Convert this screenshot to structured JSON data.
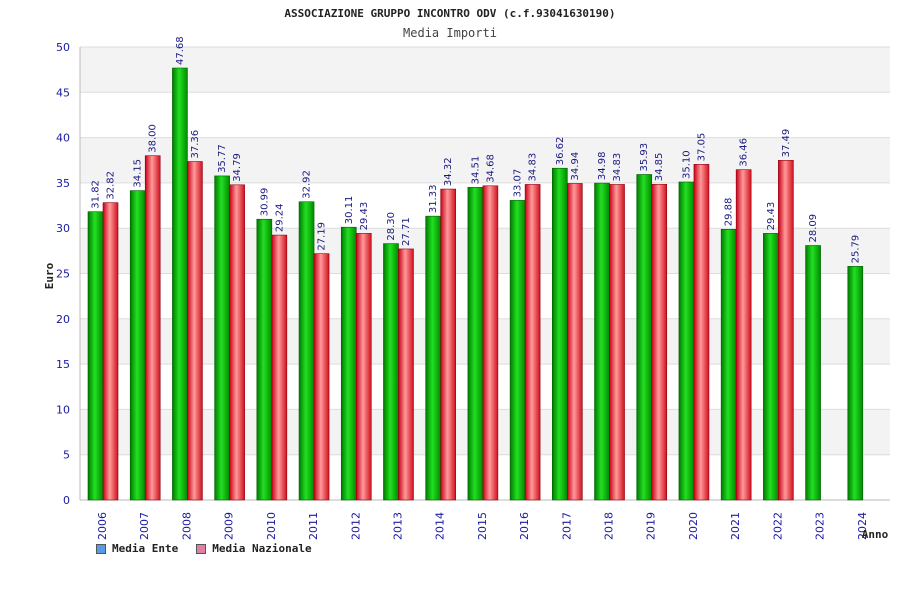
{
  "chart_data": {
    "type": "bar",
    "title": "ASSOCIAZIONE GRUPPO INCONTRO ODV (c.f.93041630190)",
    "subtitle": "Media Importi",
    "ylabel": "Euro",
    "xlabel": "Anno",
    "ylim": [
      0,
      50
    ],
    "yticks": [
      0,
      5,
      10,
      15,
      20,
      25,
      30,
      35,
      40,
      45,
      50
    ],
    "grid": true,
    "legend_position": "bottom-left",
    "categories": [
      "2006",
      "2007",
      "2008",
      "2009",
      "2010",
      "2011",
      "2012",
      "2013",
      "2014",
      "2015",
      "2016",
      "2017",
      "2018",
      "2019",
      "2020",
      "2021",
      "2022",
      "2023",
      "2024"
    ],
    "series": [
      {
        "name": "Media Ente",
        "color": "#00b000",
        "values": [
          31.82,
          34.15,
          47.68,
          35.77,
          30.99,
          32.92,
          30.11,
          28.3,
          31.33,
          34.51,
          33.07,
          36.62,
          34.98,
          35.93,
          35.1,
          29.88,
          29.43,
          28.09,
          25.79
        ],
        "labels": [
          "31.82",
          "34.15",
          "47.68",
          "35.77",
          "30.99",
          "32.92",
          "30.11",
          "28.30",
          "31.33",
          "34.51",
          "33.07",
          "36.62",
          "34.98",
          "35.93",
          "35.10",
          "29.88",
          "29.43",
          "28.09",
          "25.79"
        ]
      },
      {
        "name": "Media Nazionale",
        "color": "#e0303a",
        "values": [
          32.82,
          38.0,
          37.36,
          34.79,
          29.24,
          27.19,
          29.43,
          27.71,
          34.32,
          34.68,
          34.83,
          34.94,
          34.83,
          34.85,
          37.05,
          36.46,
          37.49,
          null,
          null
        ],
        "labels": [
          "32.82",
          "38.00",
          "37.36",
          "34.79",
          "29.24",
          "27.19",
          "29.43",
          "27.71",
          "34.32",
          "34.68",
          "34.83",
          "34.94",
          "34.83",
          "34.85",
          "37.05",
          "36.46",
          "37.49",
          "",
          ""
        ]
      }
    ],
    "legend": [
      {
        "name": "Media Ente",
        "color": "#5a9ae0"
      },
      {
        "name": "Media Nazionale",
        "color": "#e080a8"
      }
    ]
  }
}
